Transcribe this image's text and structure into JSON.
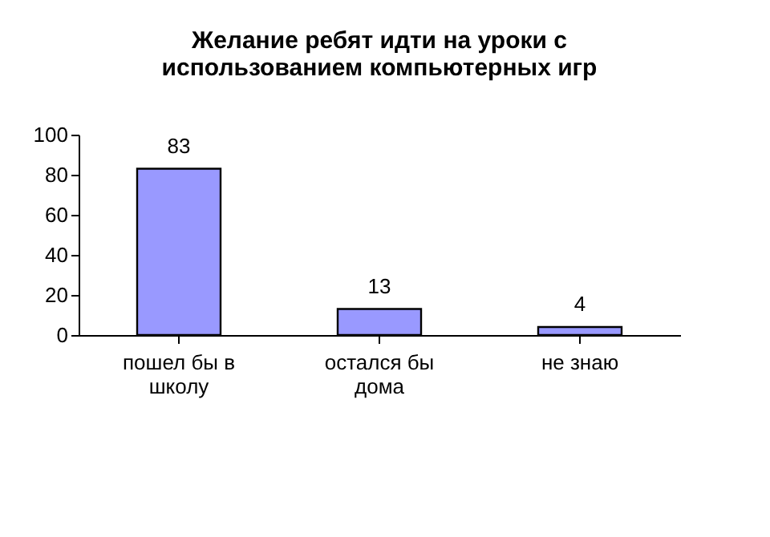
{
  "chart_data": {
    "type": "bar",
    "title": "Желание ребят идти на уроки с использованием компьютерных игр",
    "categories": [
      "пошел бы в школу",
      "остался бы дома",
      "не знаю"
    ],
    "values": [
      83,
      13,
      4
    ],
    "color": "#9999ff",
    "ylim": [
      0,
      100
    ],
    "yticks": [
      0,
      20,
      40,
      60,
      80,
      100
    ],
    "grid": false,
    "data_labels": true
  }
}
